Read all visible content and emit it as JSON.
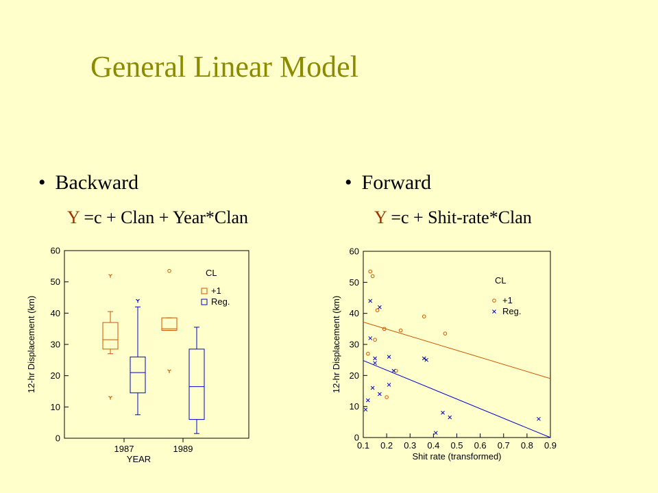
{
  "slide": {
    "title": "General Linear Model",
    "left_bullet": "Backward",
    "left_equation_y": "Y",
    "left_equation_rest": " =c + Clan + Year*Clan",
    "right_bullet": "Forward",
    "right_equation_y": "Y",
    "right_equation_rest": " =c + Shit-rate*Clan",
    "bullet_char": "•"
  },
  "colors": {
    "background": "#FFFFCC",
    "title": "#8B8B00",
    "clan_plus1": "#CC5500",
    "clan_reg": "#0000CC",
    "equation_y": "#993300"
  },
  "chart_data": [
    {
      "type": "box",
      "xlabel": "YEAR",
      "ylabel": "12-hr Displacement (km)",
      "categories": [
        "1987",
        "1989"
      ],
      "ylim": [
        0,
        60
      ],
      "yticks": [
        0,
        10,
        20,
        30,
        40,
        50,
        60
      ],
      "legend_title": "CL",
      "legend_position": "top-right",
      "series": [
        {
          "name": "+1",
          "color": "#CC5500",
          "boxes": [
            {
              "category": "1987",
              "min": 27,
              "q1": 28.5,
              "median": 31.5,
              "q3": 37,
              "max": 40.5,
              "outliers": [
                52,
                13
              ]
            },
            {
              "category": "1989",
              "min": 34.5,
              "q1": 34.5,
              "median": 35,
              "q3": 38.5,
              "max": 38.5,
              "outliers": [
                53.5,
                21.5
              ]
            }
          ]
        },
        {
          "name": "Reg.",
          "color": "#0000CC",
          "boxes": [
            {
              "category": "1987",
              "min": 7.5,
              "q1": 14.5,
              "median": 21,
              "q3": 26,
              "max": 42,
              "outliers": [
                44
              ]
            },
            {
              "category": "1989",
              "min": 1.5,
              "q1": 6,
              "median": 16.5,
              "q3": 28.5,
              "max": 35.5,
              "outliers": []
            }
          ]
        }
      ]
    },
    {
      "type": "scatter",
      "xlabel": "Shit rate (transformed)",
      "ylabel": "12-hr Displacement (km)",
      "xlim": [
        0.1,
        0.9
      ],
      "ylim": [
        0,
        60
      ],
      "xticks": [
        0.1,
        0.2,
        0.3,
        0.4,
        0.5,
        0.6,
        0.7,
        0.8,
        0.9
      ],
      "yticks": [
        0,
        10,
        20,
        30,
        40,
        50,
        60
      ],
      "legend_title": "CL",
      "legend_position": "top-right",
      "series": [
        {
          "name": "+1",
          "color": "#CC5500",
          "marker": "circle",
          "points": [
            [
              0.13,
              53.5
            ],
            [
              0.14,
              52
            ],
            [
              0.12,
              27
            ],
            [
              0.15,
              31.5
            ],
            [
              0.16,
              41
            ],
            [
              0.19,
              35
            ],
            [
              0.2,
              13
            ],
            [
              0.24,
              21.5
            ],
            [
              0.26,
              34.5
            ],
            [
              0.36,
              39
            ],
            [
              0.45,
              33.5
            ]
          ],
          "fit_line": [
            [
              0.1,
              37.2
            ],
            [
              0.9,
              19
            ]
          ]
        },
        {
          "name": "Reg.",
          "color": "#0000CC",
          "marker": "x",
          "points": [
            [
              0.11,
              9
            ],
            [
              0.12,
              12
            ],
            [
              0.13,
              32
            ],
            [
              0.13,
              44
            ],
            [
              0.14,
              16
            ],
            [
              0.15,
              24
            ],
            [
              0.15,
              25.5
            ],
            [
              0.17,
              42
            ],
            [
              0.17,
              14
            ],
            [
              0.21,
              26
            ],
            [
              0.21,
              17
            ],
            [
              0.23,
              21.5
            ],
            [
              0.36,
              25.5
            ],
            [
              0.37,
              25
            ],
            [
              0.41,
              1.5
            ],
            [
              0.44,
              8
            ],
            [
              0.47,
              6.5
            ],
            [
              0.85,
              6
            ]
          ],
          "fit_line": [
            [
              0.1,
              24.8
            ],
            [
              0.9,
              0
            ]
          ]
        }
      ]
    }
  ]
}
